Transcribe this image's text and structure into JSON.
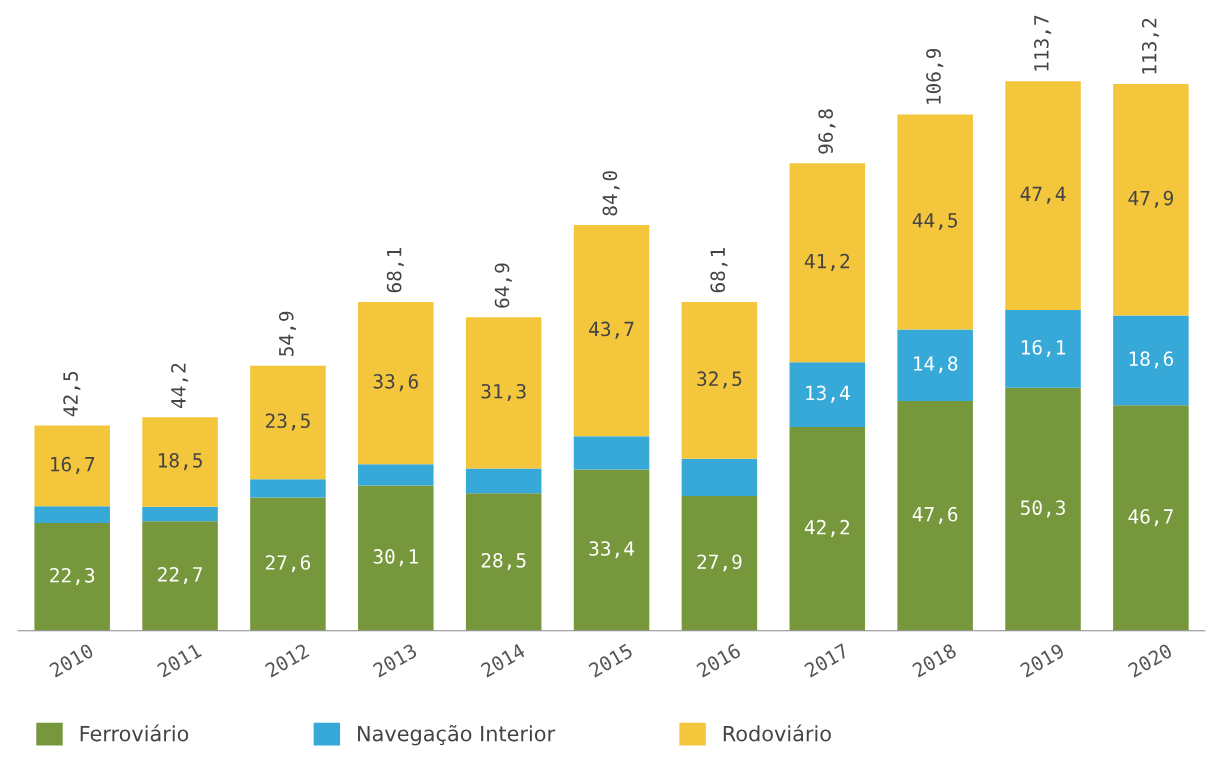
{
  "chart_data": {
    "type": "bar",
    "stacked": true,
    "categories": [
      "2010",
      "2011",
      "2012",
      "2013",
      "2014",
      "2015",
      "2016",
      "2017",
      "2018",
      "2019",
      "2020"
    ],
    "series": [
      {
        "name": "Ferroviário",
        "color": "#76973c",
        "values": [
          22.3,
          22.7,
          27.6,
          30.1,
          28.5,
          33.4,
          27.9,
          42.2,
          47.6,
          50.3,
          46.7
        ],
        "value_labels": [
          "22,3",
          "22,7",
          "27,6",
          "30,1",
          "28,5",
          "33,4",
          "27,9",
          "42,2",
          "47,6",
          "50,3",
          "46,7"
        ]
      },
      {
        "name": "Navegação Interior",
        "color": "#36a9d9",
        "values": [
          3.5,
          3.0,
          3.8,
          4.4,
          5.1,
          6.9,
          7.7,
          13.4,
          14.8,
          16.1,
          18.6
        ],
        "value_labels": [
          null,
          null,
          null,
          null,
          null,
          null,
          null,
          "13,4",
          "14,8",
          "16,1",
          "18,6"
        ]
      },
      {
        "name": "Rodoviário",
        "color": "#f4c63b",
        "values": [
          16.7,
          18.5,
          23.5,
          33.6,
          31.3,
          43.7,
          32.5,
          41.2,
          44.5,
          47.4,
          47.9
        ],
        "value_labels": [
          "16,7",
          "18,5",
          "23,5",
          "33,6",
          "31,3",
          "43,7",
          "32,5",
          "41,2",
          "44,5",
          "47,4",
          "47,9"
        ]
      }
    ],
    "totals": [
      "42,5",
      "44,2",
      "54,9",
      "68,1",
      "64,9",
      "84,0",
      "68,1",
      "96,8",
      "106,9",
      "113,7",
      "113,2"
    ],
    "legend": "bottom left",
    "grid": false,
    "tick_labels": "x"
  }
}
